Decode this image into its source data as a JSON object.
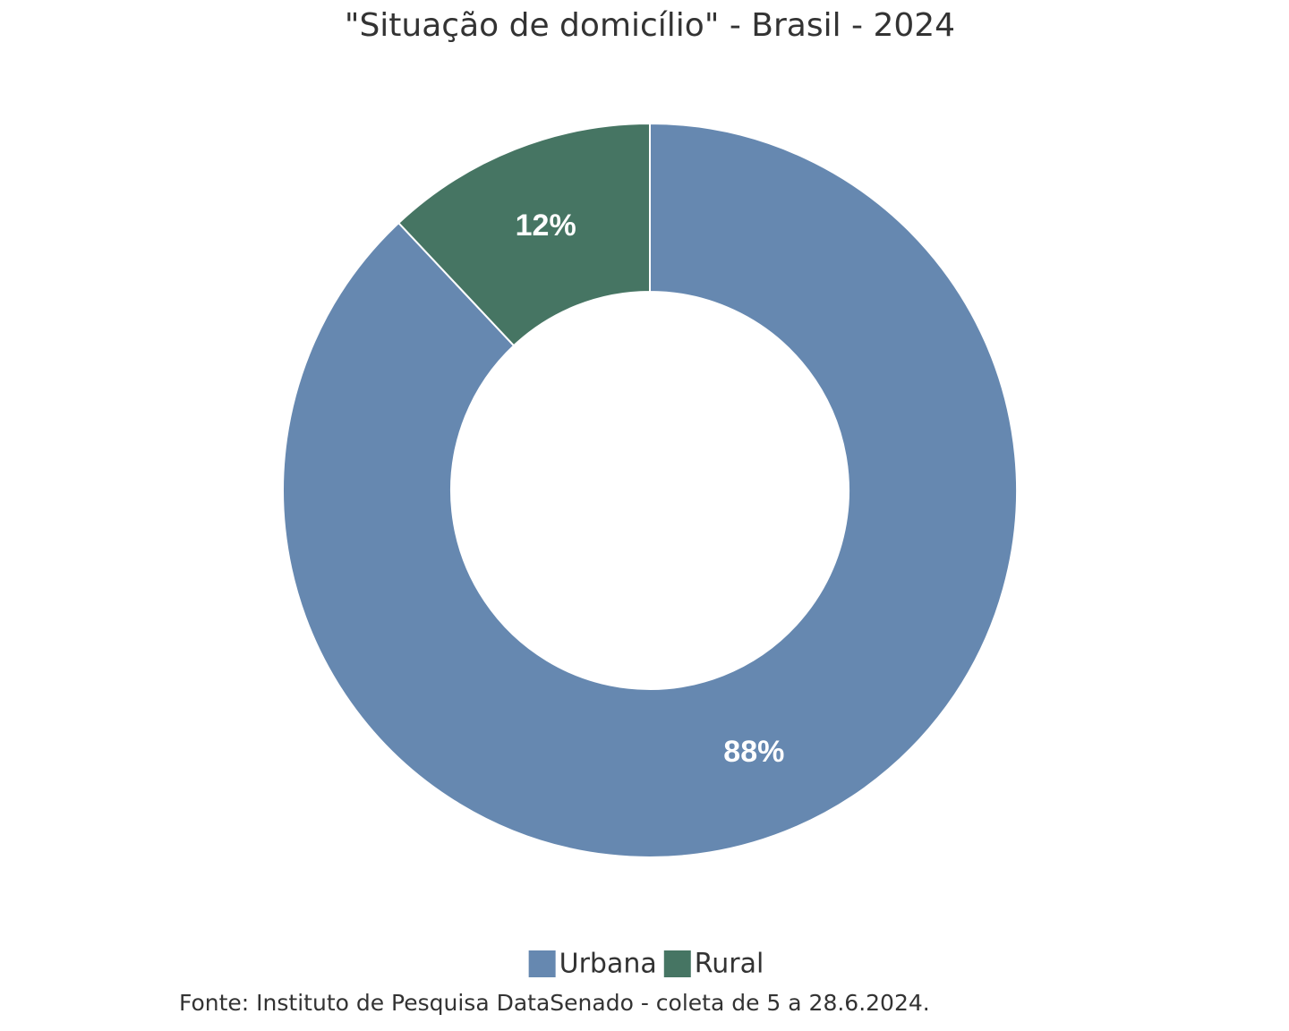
{
  "chart_data": {
    "type": "donut",
    "title": "\"Situação de domicílio\" - Brasil - 2024",
    "categories": [
      "Urbana",
      "Rural"
    ],
    "values": [
      88,
      12
    ],
    "value_labels": [
      "88%",
      "12%"
    ],
    "colors": [
      "#6688b0",
      "#467563"
    ],
    "legend": "bottom",
    "source": "Fonte: Instituto de Pesquisa DataSenado - coleta de 5 a 28.6.2024."
  }
}
